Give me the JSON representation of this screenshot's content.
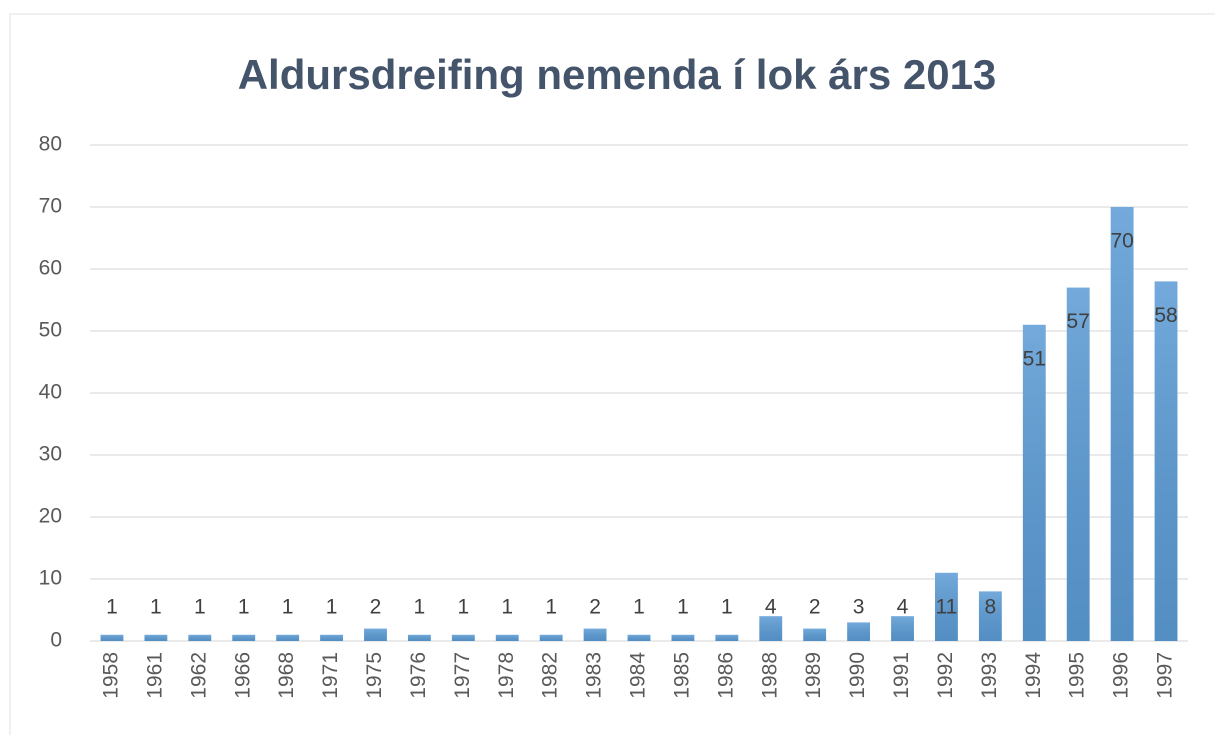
{
  "chart_data": {
    "type": "bar",
    "title": "Aldursdreifing nemenda í lok árs 2013",
    "categories": [
      "1958",
      "1961",
      "1962",
      "1966",
      "1968",
      "1971",
      "1975",
      "1976",
      "1977",
      "1978",
      "1982",
      "1983",
      "1984",
      "1985",
      "1986",
      "1988",
      "1989",
      "1990",
      "1991",
      "1992",
      "1993",
      "1994",
      "1995",
      "1996",
      "1997"
    ],
    "values": [
      1,
      1,
      1,
      1,
      1,
      1,
      2,
      1,
      1,
      1,
      1,
      2,
      1,
      1,
      1,
      4,
      2,
      3,
      4,
      11,
      8,
      51,
      57,
      70,
      58
    ],
    "color": "#5b9bd5",
    "ylim": [
      0,
      80
    ],
    "yticks": [
      0,
      10,
      20,
      30,
      40,
      50,
      60,
      70,
      80
    ],
    "grid": true
  }
}
